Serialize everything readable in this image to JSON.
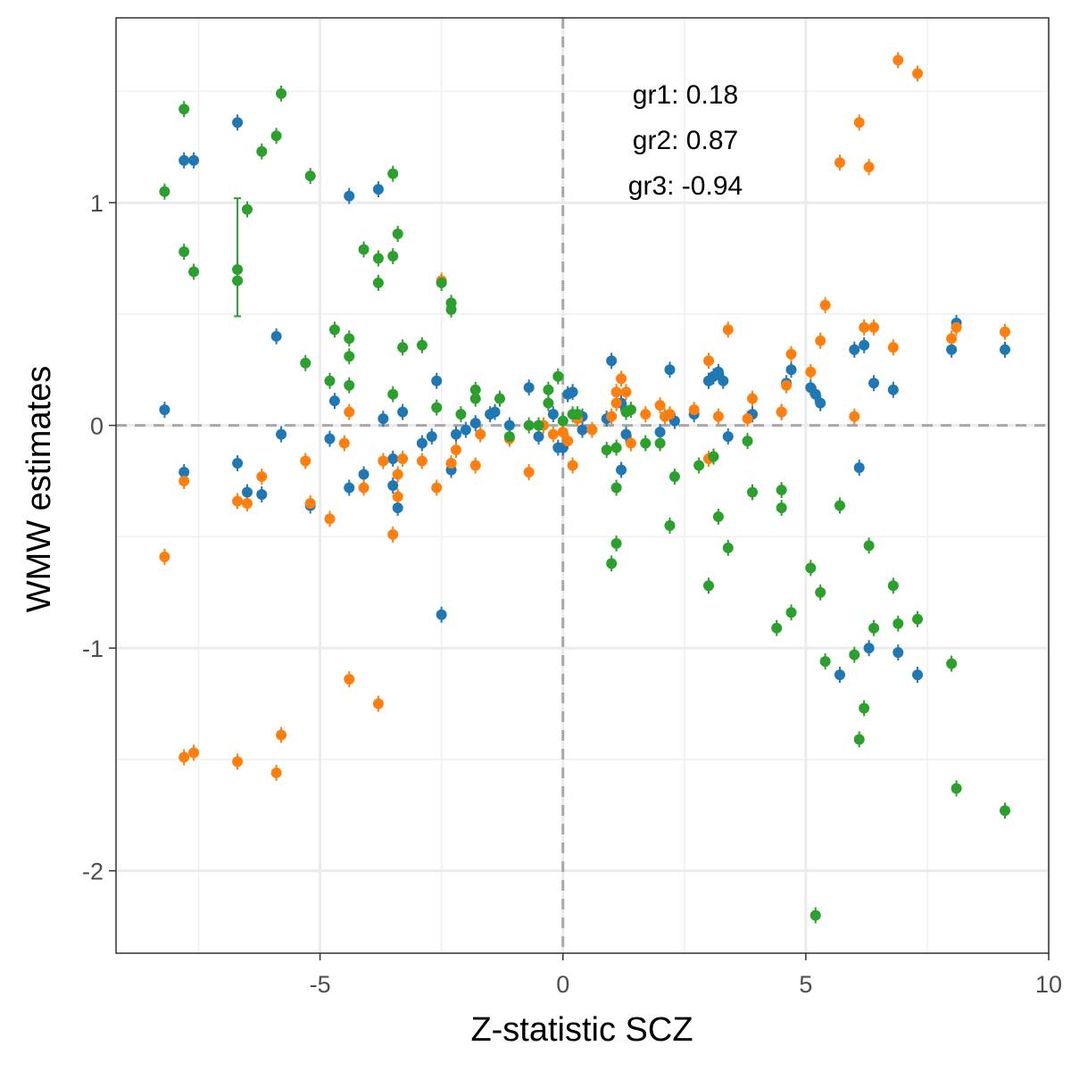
{
  "chart_data": {
    "type": "scatter",
    "title": "",
    "xlabel": "Z-statistic SCZ",
    "ylabel": "WMW estimates",
    "xlim": [
      -9.2,
      10.0
    ],
    "ylim": [
      -2.37,
      1.83
    ],
    "xticks": [
      -5,
      0,
      5,
      10
    ],
    "xtick_labels": [
      "-5",
      "0",
      "5",
      "10"
    ],
    "yticks": [
      -2,
      -1,
      0,
      1
    ],
    "ytick_labels": [
      "-2",
      "-1",
      "0",
      "1"
    ],
    "grid": true,
    "legend": "none",
    "reference_lines": {
      "x": 0,
      "y": 0,
      "style": "dashed"
    },
    "annotations": [
      "gr1: 0.18",
      "gr2: 0.87",
      "gr3: -0.94"
    ],
    "series": [
      {
        "color": "#1f77b4",
        "points": [
          [
            -8.2,
            0.07
          ],
          [
            -7.8,
            1.19
          ],
          [
            -7.8,
            -0.21
          ],
          [
            -7.6,
            1.19
          ],
          [
            -6.7,
            1.36
          ],
          [
            -6.7,
            -0.17
          ],
          [
            -6.5,
            -0.3
          ],
          [
            -6.2,
            -0.31
          ],
          [
            -5.9,
            0.4
          ],
          [
            -5.8,
            -0.04
          ],
          [
            -5.2,
            -0.36
          ],
          [
            -4.8,
            -0.06
          ],
          [
            -4.7,
            0.11
          ],
          [
            -4.4,
            1.03
          ],
          [
            -4.4,
            -0.28
          ],
          [
            -4.1,
            -0.22
          ],
          [
            -3.8,
            1.06
          ],
          [
            -3.7,
            0.03
          ],
          [
            -3.5,
            -0.27
          ],
          [
            -3.5,
            -0.15
          ],
          [
            -3.4,
            -0.37
          ],
          [
            -3.3,
            0.06
          ],
          [
            -2.9,
            -0.08
          ],
          [
            -2.7,
            -0.05
          ],
          [
            -2.6,
            0.2
          ],
          [
            -2.5,
            -0.85
          ],
          [
            -2.3,
            -0.2
          ],
          [
            -2.2,
            -0.04
          ],
          [
            -2.0,
            -0.02
          ],
          [
            -1.8,
            0.01
          ],
          [
            -1.5,
            0.05
          ],
          [
            -1.4,
            0.06
          ],
          [
            -1.1,
            0.0
          ],
          [
            -0.7,
            0.17
          ],
          [
            -0.5,
            -0.05
          ],
          [
            -0.2,
            0.05
          ],
          [
            -0.1,
            -0.1
          ],
          [
            0.0,
            -0.1
          ],
          [
            0.1,
            0.14
          ],
          [
            0.2,
            0.15
          ],
          [
            0.4,
            0.04
          ],
          [
            0.4,
            -0.02
          ],
          [
            0.9,
            0.03
          ],
          [
            1.0,
            0.29
          ],
          [
            1.2,
            0.1
          ],
          [
            1.2,
            -0.2
          ],
          [
            1.3,
            -0.04
          ],
          [
            2.0,
            -0.03
          ],
          [
            2.2,
            0.25
          ],
          [
            2.3,
            0.02
          ],
          [
            2.7,
            0.05
          ],
          [
            3.0,
            0.2
          ],
          [
            3.0,
            0.2
          ],
          [
            3.1,
            0.22
          ],
          [
            3.2,
            0.24
          ],
          [
            3.3,
            0.2
          ],
          [
            3.4,
            -0.05
          ],
          [
            3.9,
            0.05
          ],
          [
            4.5,
            0.06
          ],
          [
            4.6,
            0.19
          ],
          [
            4.7,
            0.25
          ],
          [
            5.1,
            0.17
          ],
          [
            5.3,
            0.1
          ],
          [
            5.2,
            0.14
          ],
          [
            5.7,
            -1.12
          ],
          [
            6.0,
            0.34
          ],
          [
            6.1,
            -0.19
          ],
          [
            6.2,
            0.36
          ],
          [
            6.3,
            -1.0
          ],
          [
            6.4,
            0.19
          ],
          [
            6.8,
            0.16
          ],
          [
            6.9,
            -1.02
          ],
          [
            7.3,
            -1.12
          ],
          [
            8.0,
            0.34
          ],
          [
            8.1,
            0.46
          ],
          [
            9.1,
            0.34
          ]
        ]
      },
      {
        "color": "#ff7f0e",
        "points": [
          [
            -8.2,
            -0.59
          ],
          [
            -7.8,
            -0.25
          ],
          [
            -7.8,
            -1.49
          ],
          [
            -7.6,
            -1.47
          ],
          [
            -6.7,
            -1.51
          ],
          [
            -6.7,
            -0.34
          ],
          [
            -6.5,
            -0.35
          ],
          [
            -6.2,
            -0.23
          ],
          [
            -5.9,
            -1.56
          ],
          [
            -5.8,
            -1.39
          ],
          [
            -5.3,
            -0.16
          ],
          [
            -5.2,
            -0.35
          ],
          [
            -4.8,
            -0.42
          ],
          [
            -4.4,
            -1.14
          ],
          [
            -4.4,
            0.06
          ],
          [
            -4.5,
            -0.08
          ],
          [
            -4.1,
            -0.28
          ],
          [
            -3.8,
            -1.25
          ],
          [
            -3.7,
            -0.16
          ],
          [
            -3.5,
            -0.49
          ],
          [
            -3.4,
            -0.22
          ],
          [
            -3.4,
            -0.32
          ],
          [
            -3.3,
            -0.15
          ],
          [
            -2.9,
            -0.16
          ],
          [
            -2.6,
            -0.28
          ],
          [
            -2.5,
            0.65
          ],
          [
            -2.3,
            -0.17
          ],
          [
            -2.2,
            -0.11
          ],
          [
            -1.8,
            -0.18
          ],
          [
            -1.7,
            -0.04
          ],
          [
            -1.1,
            -0.06
          ],
          [
            -0.7,
            -0.21
          ],
          [
            -0.4,
            0.0
          ],
          [
            -0.2,
            -0.04
          ],
          [
            0.0,
            -0.03
          ],
          [
            0.1,
            -0.07
          ],
          [
            0.2,
            -0.18
          ],
          [
            0.3,
            0.03
          ],
          [
            0.6,
            -0.02
          ],
          [
            1.0,
            0.04
          ],
          [
            1.1,
            0.15
          ],
          [
            1.1,
            0.1
          ],
          [
            1.2,
            0.21
          ],
          [
            1.3,
            0.15
          ],
          [
            1.4,
            -0.08
          ],
          [
            1.7,
            0.05
          ],
          [
            2.0,
            0.09
          ],
          [
            2.1,
            0.04
          ],
          [
            2.2,
            0.05
          ],
          [
            2.7,
            0.07
          ],
          [
            3.0,
            0.29
          ],
          [
            3.0,
            -0.15
          ],
          [
            3.1,
            -0.14
          ],
          [
            3.2,
            0.04
          ],
          [
            3.4,
            0.43
          ],
          [
            3.9,
            0.12
          ],
          [
            3.8,
            0.03
          ],
          [
            4.5,
            0.06
          ],
          [
            4.6,
            0.18
          ],
          [
            4.7,
            0.32
          ],
          [
            5.1,
            0.24
          ],
          [
            5.3,
            0.38
          ],
          [
            5.4,
            0.54
          ],
          [
            5.7,
            1.18
          ],
          [
            6.0,
            0.04
          ],
          [
            6.1,
            1.36
          ],
          [
            6.2,
            0.44
          ],
          [
            6.3,
            1.16
          ],
          [
            6.4,
            0.44
          ],
          [
            6.8,
            0.35
          ],
          [
            6.9,
            1.64
          ],
          [
            7.3,
            1.58
          ],
          [
            8.0,
            0.39
          ],
          [
            8.1,
            0.44
          ],
          [
            9.1,
            0.42
          ]
        ]
      },
      {
        "color": "#2ca02c",
        "points": [
          [
            -8.2,
            1.05
          ],
          [
            -7.8,
            1.42
          ],
          [
            -7.8,
            0.78
          ],
          [
            -7.6,
            0.69
          ],
          [
            -6.7,
            0.65
          ],
          [
            -6.7,
            0.7
          ],
          [
            -6.5,
            0.97
          ],
          [
            -6.2,
            1.23
          ],
          [
            -5.9,
            1.3
          ],
          [
            -5.8,
            1.49
          ],
          [
            -5.3,
            0.28
          ],
          [
            -5.2,
            1.12
          ],
          [
            -4.8,
            0.2
          ],
          [
            -4.7,
            0.43
          ],
          [
            -4.4,
            0.18
          ],
          [
            -4.4,
            0.31
          ],
          [
            -4.4,
            0.39
          ],
          [
            -4.1,
            0.79
          ],
          [
            -3.8,
            0.64
          ],
          [
            -3.8,
            0.75
          ],
          [
            -3.5,
            1.13
          ],
          [
            -3.5,
            0.76
          ],
          [
            -3.4,
            0.86
          ],
          [
            -3.3,
            0.35
          ],
          [
            -3.5,
            0.14
          ],
          [
            -2.9,
            0.36
          ],
          [
            -2.6,
            0.08
          ],
          [
            -2.5,
            0.64
          ],
          [
            -2.3,
            0.55
          ],
          [
            -2.3,
            0.52
          ],
          [
            -2.1,
            0.05
          ],
          [
            -1.8,
            0.16
          ],
          [
            -1.8,
            0.12
          ],
          [
            -1.3,
            0.12
          ],
          [
            -1.1,
            -0.05
          ],
          [
            -0.7,
            0.0
          ],
          [
            -0.5,
            0.0
          ],
          [
            -0.3,
            0.16
          ],
          [
            -0.3,
            0.1
          ],
          [
            -0.1,
            0.22
          ],
          [
            0.0,
            0.02
          ],
          [
            0.2,
            0.05
          ],
          [
            0.3,
            0.05
          ],
          [
            0.9,
            -0.11
          ],
          [
            1.0,
            -0.62
          ],
          [
            1.1,
            -0.28
          ],
          [
            1.1,
            -0.53
          ],
          [
            1.1,
            -0.1
          ],
          [
            1.3,
            0.06
          ],
          [
            1.4,
            0.07
          ],
          [
            1.7,
            -0.08
          ],
          [
            2.0,
            -0.08
          ],
          [
            2.2,
            -0.45
          ],
          [
            2.3,
            -0.23
          ],
          [
            2.8,
            -0.18
          ],
          [
            3.0,
            -0.72
          ],
          [
            3.1,
            -0.14
          ],
          [
            3.2,
            -0.41
          ],
          [
            3.4,
            -0.55
          ],
          [
            3.8,
            -0.07
          ],
          [
            3.9,
            -0.3
          ],
          [
            4.4,
            -0.91
          ],
          [
            4.5,
            -0.29
          ],
          [
            4.5,
            -0.37
          ],
          [
            4.7,
            -0.84
          ],
          [
            5.1,
            -0.64
          ],
          [
            5.2,
            -2.2
          ],
          [
            5.3,
            -0.75
          ],
          [
            5.4,
            -1.06
          ],
          [
            5.7,
            -0.36
          ],
          [
            6.0,
            -1.03
          ],
          [
            6.1,
            -1.41
          ],
          [
            6.2,
            -1.27
          ],
          [
            6.3,
            -0.54
          ],
          [
            6.4,
            -0.91
          ],
          [
            6.8,
            -0.72
          ],
          [
            6.9,
            -0.89
          ],
          [
            7.3,
            -0.87
          ],
          [
            8.0,
            -1.07
          ],
          [
            8.1,
            -1.63
          ],
          [
            9.1,
            -1.73
          ]
        ]
      }
    ],
    "error_bars": [
      {
        "series": 2,
        "x": -6.7,
        "low": 0.49,
        "high": 1.02
      }
    ]
  }
}
